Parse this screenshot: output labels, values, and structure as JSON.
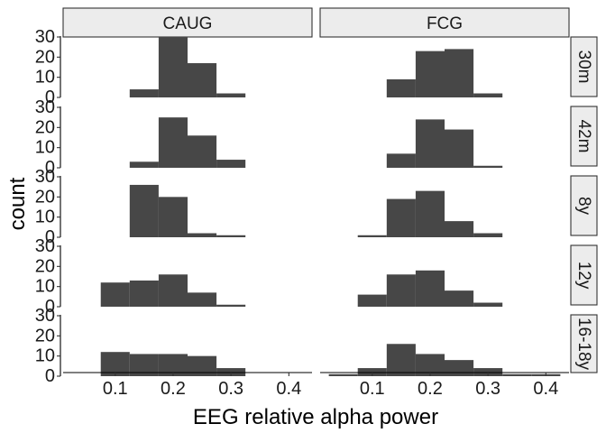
{
  "chart_data": {
    "type": "bar",
    "subtype": "faceted-histogram",
    "xlabel": "EEG relative alpha power",
    "ylabel": "count",
    "xlim": [
      0.01,
      0.44
    ],
    "ylim": [
      0,
      30
    ],
    "x_ticks": [
      0.1,
      0.2,
      0.3,
      0.4
    ],
    "x_tick_labels": [
      "0.1",
      "0.2",
      "0.3",
      "0.4"
    ],
    "y_ticks": [
      0,
      10,
      20,
      30
    ],
    "y_tick_labels": [
      "0",
      "10",
      "20",
      "30"
    ],
    "bin_width": 0.05,
    "grid": false,
    "colors": {
      "bar": "#474747",
      "strip": "#ececec"
    },
    "columns": [
      "CAUG",
      "FCG"
    ],
    "rows": [
      "30m",
      "42m",
      "8y",
      "12y",
      "16-18y"
    ],
    "panels": [
      {
        "row": "30m",
        "col": "CAUG",
        "bin_starts": [
          0.125,
          0.175,
          0.225,
          0.275
        ],
        "counts": [
          4,
          30,
          17,
          2
        ]
      },
      {
        "row": "30m",
        "col": "FCG",
        "bin_starts": [
          0.125,
          0.175,
          0.225,
          0.275
        ],
        "counts": [
          9,
          23,
          24,
          2
        ]
      },
      {
        "row": "42m",
        "col": "CAUG",
        "bin_starts": [
          0.125,
          0.175,
          0.225,
          0.275
        ],
        "counts": [
          3,
          25,
          16,
          4
        ]
      },
      {
        "row": "42m",
        "col": "FCG",
        "bin_starts": [
          0.125,
          0.175,
          0.225,
          0.275
        ],
        "counts": [
          7,
          24,
          19,
          1
        ]
      },
      {
        "row": "8y",
        "col": "CAUG",
        "bin_starts": [
          0.125,
          0.175,
          0.225,
          0.275
        ],
        "counts": [
          26,
          20,
          2,
          1
        ]
      },
      {
        "row": "8y",
        "col": "FCG",
        "bin_starts": [
          0.075,
          0.125,
          0.175,
          0.225,
          0.275
        ],
        "counts": [
          1,
          19,
          23,
          8,
          2
        ]
      },
      {
        "row": "12y",
        "col": "CAUG",
        "bin_starts": [
          0.075,
          0.125,
          0.175,
          0.225,
          0.275
        ],
        "counts": [
          12,
          13,
          16,
          7,
          1
        ]
      },
      {
        "row": "12y",
        "col": "FCG",
        "bin_starts": [
          0.075,
          0.125,
          0.175,
          0.225,
          0.275
        ],
        "counts": [
          6,
          16,
          18,
          8,
          2
        ]
      },
      {
        "row": "16-18y",
        "col": "CAUG",
        "bin_starts": [
          0.075,
          0.125,
          0.175,
          0.225,
          0.275
        ],
        "counts": [
          12,
          11,
          11,
          10,
          4
        ]
      },
      {
        "row": "16-18y",
        "col": "FCG",
        "bin_starts": [
          0.025,
          0.075,
          0.125,
          0.175,
          0.225,
          0.275,
          0.325,
          0.375
        ],
        "counts": [
          1,
          4,
          16,
          11,
          8,
          4,
          1,
          1
        ]
      }
    ]
  }
}
